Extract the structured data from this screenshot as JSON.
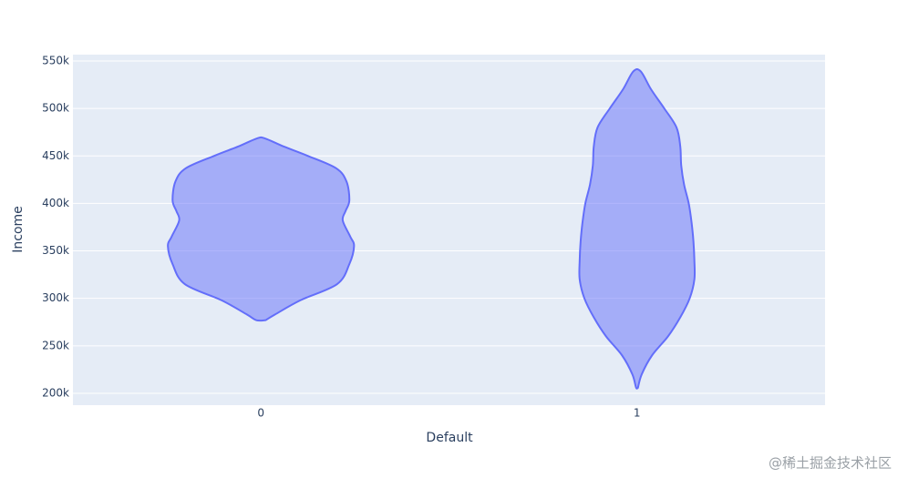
{
  "chart_data": {
    "type": "violin",
    "x_label": "Default",
    "y_label": "Income",
    "categories": [
      "0",
      "1"
    ],
    "series": [
      {
        "color": "#636efa",
        "y": [
          277000,
          283000,
          298000,
          315000,
          336000,
          355000,
          365000,
          382000,
          392000,
          403000,
          423000,
          437000,
          450000,
          460000,
          468500
        ],
        "density": [
          0.05,
          0.15,
          0.42,
          0.81,
          0.94,
          0.99,
          0.95,
          0.87,
          0.9,
          0.94,
          0.91,
          0.8,
          0.5,
          0.24,
          0.04
        ]
      },
      {
        "color": "#636efa",
        "y": [
          206000,
          220000,
          240000,
          260000,
          280000,
          300000,
          320000,
          340000,
          360000,
          380000,
          400000,
          420000,
          440000,
          460000,
          480000,
          500000,
          520000,
          539000
        ],
        "density": [
          0.01,
          0.05,
          0.16,
          0.33,
          0.46,
          0.56,
          0.61,
          0.61,
          0.6,
          0.58,
          0.55,
          0.5,
          0.47,
          0.46,
          0.42,
          0.29,
          0.15,
          0.04
        ]
      }
    ],
    "ylim": [
      187500,
      556700
    ],
    "yticks": [
      {
        "value": 200000,
        "label": "200k"
      },
      {
        "value": 250000,
        "label": "250k"
      },
      {
        "value": 300000,
        "label": "300k"
      },
      {
        "value": 350000,
        "label": "350k"
      },
      {
        "value": 400000,
        "label": "400k"
      },
      {
        "value": 450000,
        "label": "450k"
      },
      {
        "value": 500000,
        "label": "500k"
      },
      {
        "value": 550000,
        "label": "550k"
      }
    ],
    "grid": true
  },
  "watermark": "@稀土掘金技术社区"
}
